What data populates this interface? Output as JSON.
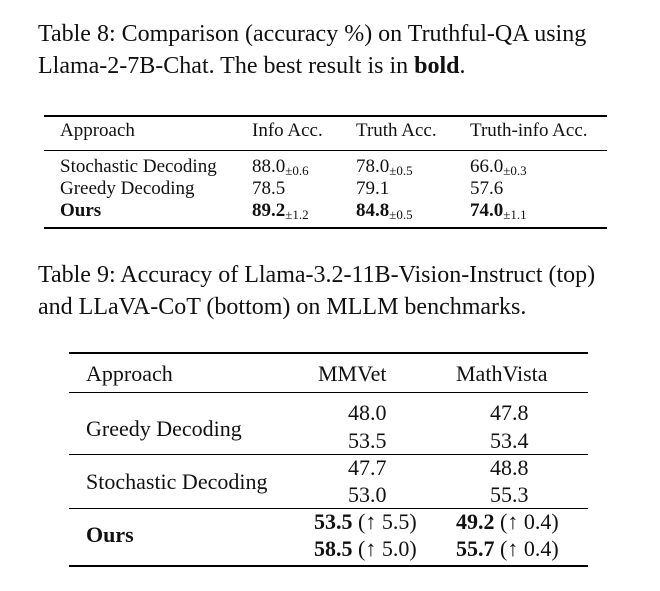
{
  "table8": {
    "caption_prefix": "Table 8: Comparison (accuracy %) on Truthful-QA using Llama-2-7B-Chat. The best result is in ",
    "caption_bold": "bold",
    "caption_suffix": ".",
    "headers": [
      "Approach",
      "Info Acc.",
      "Truth Acc.",
      "Truth-info Acc."
    ],
    "rows": [
      {
        "approach": "Stochastic Decoding",
        "cells": [
          {
            "value": "88.0",
            "pm": "±0.6"
          },
          {
            "value": "78.0",
            "pm": "±0.5"
          },
          {
            "value": "66.0",
            "pm": "±0.3"
          }
        ]
      },
      {
        "approach": "Greedy Decoding",
        "cells": [
          {
            "value": "78.5",
            "pm": ""
          },
          {
            "value": "79.1",
            "pm": ""
          },
          {
            "value": "57.6",
            "pm": ""
          }
        ]
      },
      {
        "approach": "Ours",
        "cells": [
          {
            "value": "89.2",
            "pm": "±1.2"
          },
          {
            "value": "84.8",
            "pm": "±0.5"
          },
          {
            "value": "74.0",
            "pm": "±1.1"
          }
        ]
      }
    ]
  },
  "table9": {
    "caption": "Table 9: Accuracy of Llama-3.2-11B-Vision-Instruct (top) and LLaVA-CoT (bottom) on MLLM benchmarks.",
    "headers": [
      "Approach",
      "MMVet",
      "MathVista"
    ],
    "groups": [
      {
        "approach": "Greedy Decoding",
        "mmvet": [
          {
            "value": "48.0",
            "delta": ""
          },
          {
            "value": "53.5",
            "delta": ""
          }
        ],
        "mathvista": [
          {
            "value": "47.8",
            "delta": ""
          },
          {
            "value": "53.4",
            "delta": ""
          }
        ]
      },
      {
        "approach": "Stochastic Decoding",
        "mmvet": [
          {
            "value": "47.7",
            "delta": ""
          },
          {
            "value": "53.0",
            "delta": ""
          }
        ],
        "mathvista": [
          {
            "value": "48.8",
            "delta": ""
          },
          {
            "value": "55.3",
            "delta": ""
          }
        ]
      },
      {
        "approach": "Ours",
        "mmvet": [
          {
            "value": "53.5",
            "delta": "(↑ 5.5)"
          },
          {
            "value": "58.5",
            "delta": "(↑ 5.0)"
          }
        ],
        "mathvista": [
          {
            "value": "49.2",
            "delta": "(↑ 0.4)"
          },
          {
            "value": "55.7",
            "delta": "(↑ 0.4)"
          }
        ]
      }
    ]
  }
}
